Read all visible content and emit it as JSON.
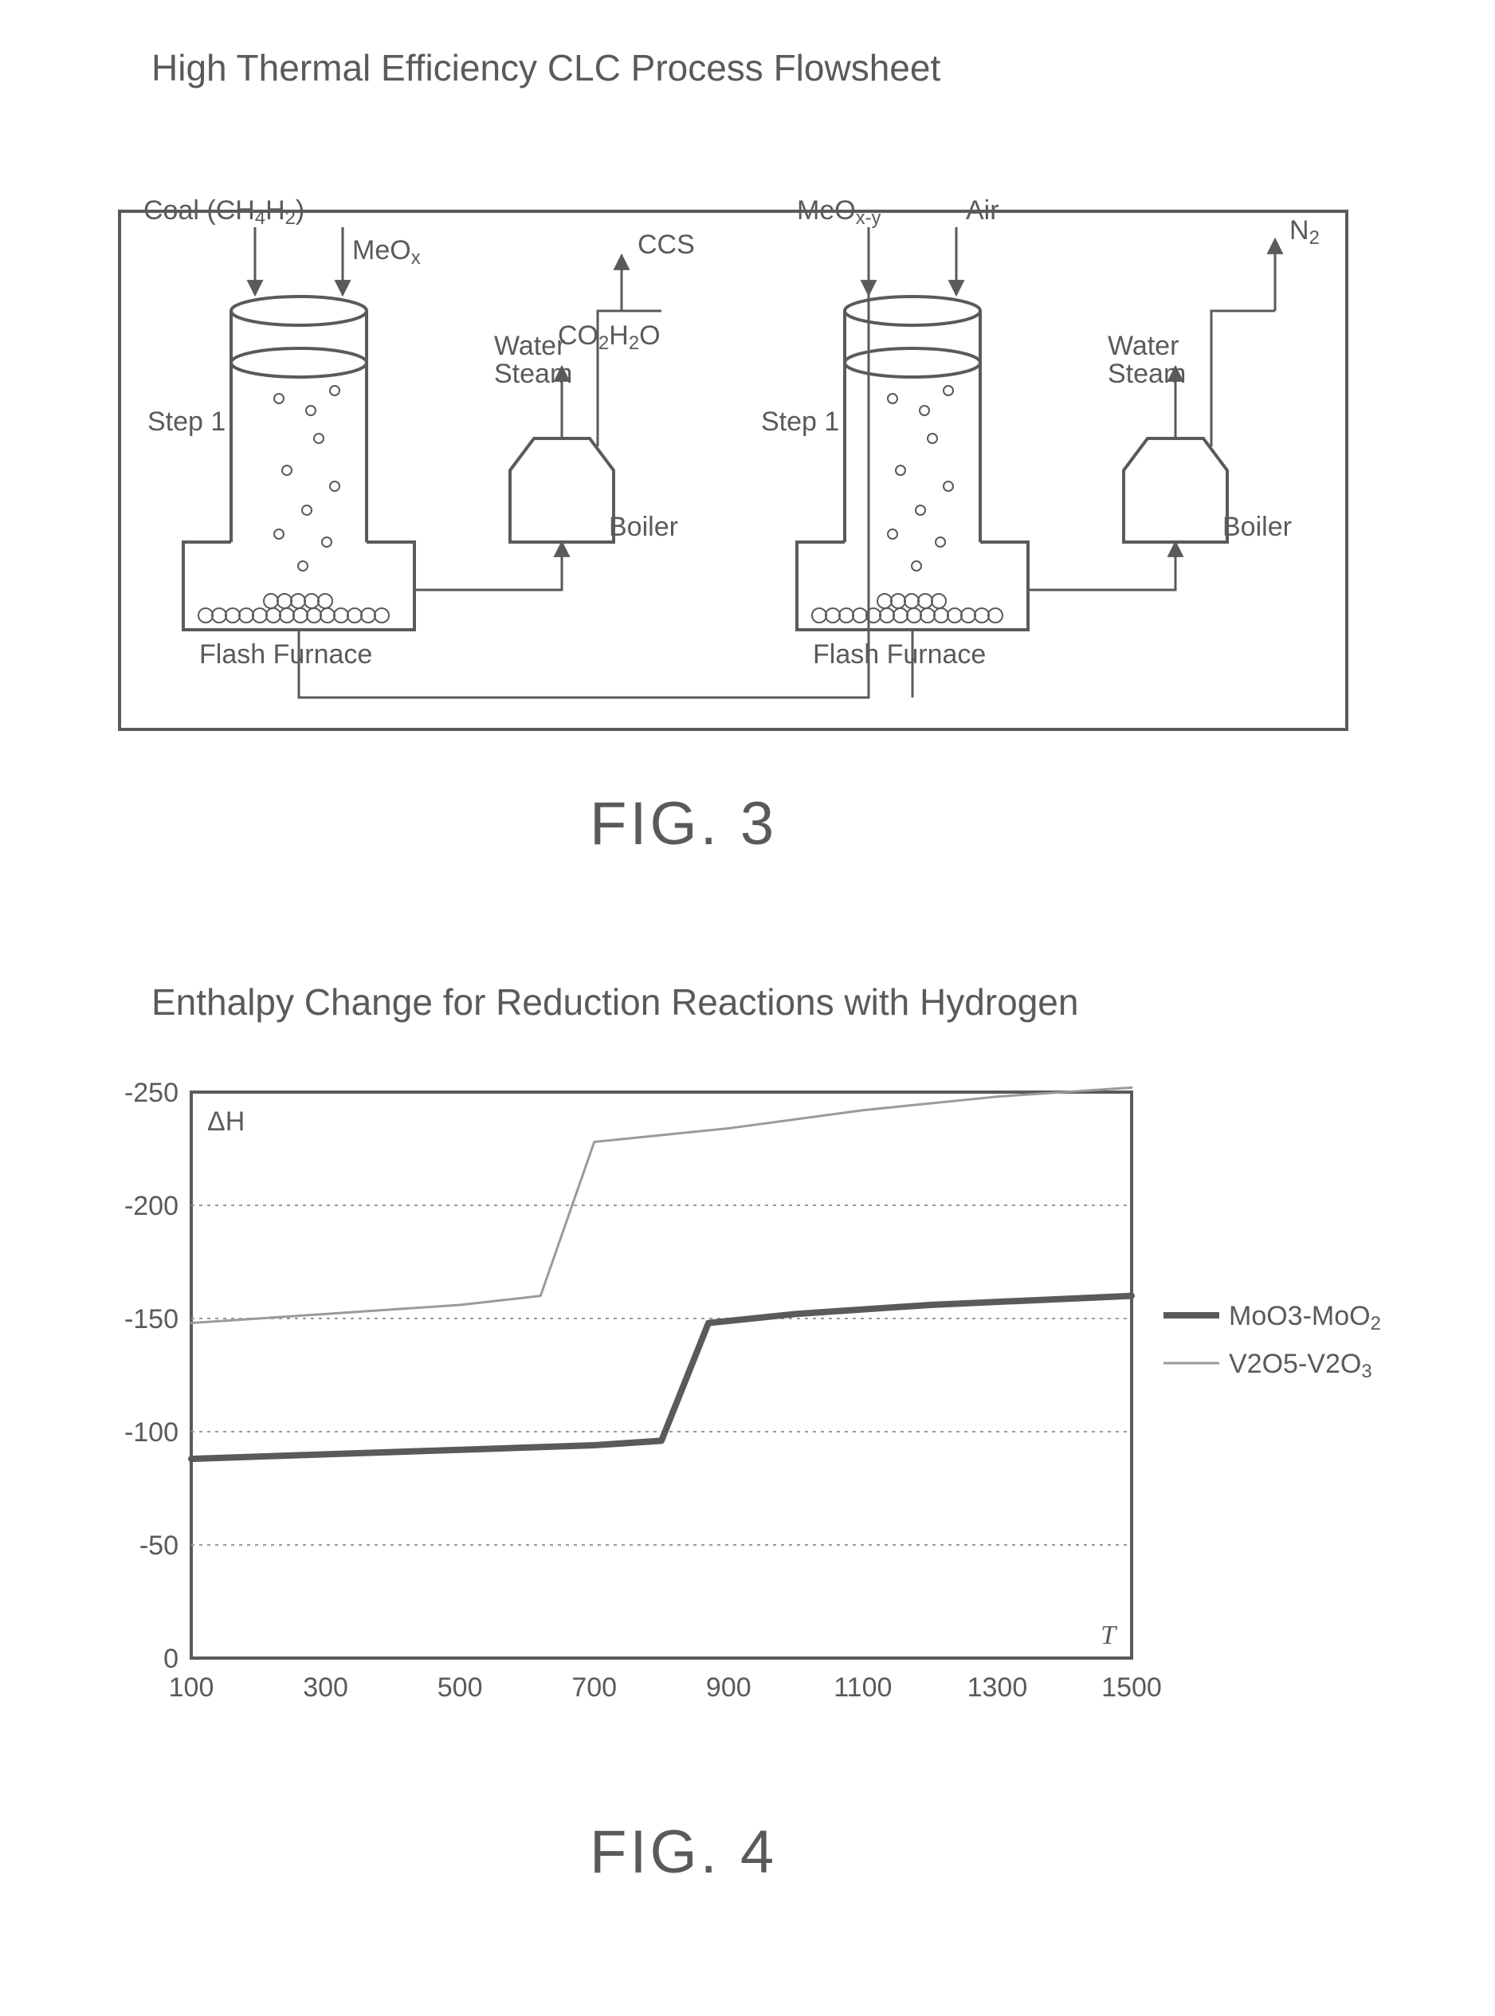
{
  "fig3": {
    "title": "High Thermal Efficiency CLC Process Flowsheet",
    "caption": "FIG. 3",
    "title_fontsize": 46,
    "title_color": "#5a5a5a",
    "caption_fontsize": 76,
    "caption_color": "#5a5a5a",
    "stroke_color": "#5a5a5a",
    "text_color": "#5a5a5a",
    "background": "#ffffff",
    "text_fontsize": 34,
    "labels": {
      "coal": "Coal (CH",
      "coal_sub": "4",
      "coal_h": "H",
      "coal_sub2": "2",
      "coal_close": ")",
      "meox": "MeO",
      "meox_sub": "x",
      "ccs": "CCS",
      "co2h2o": "CO",
      "co2h2o_sub1": "2",
      "co2h2o_h": "H",
      "co2h2o_sub2": "2",
      "co2h2o_o": "O",
      "water": "Water",
      "steam": "Steam",
      "step1": "Step 1",
      "boiler": "Boiler",
      "flash_furnace": "Flash Furnace",
      "meoxy": "MeO",
      "meoxy_sub": "x-y",
      "air": "Air",
      "n2": "N",
      "n2_sub": "2"
    }
  },
  "fig4": {
    "title": "Enthalpy Change for Reduction Reactions with Hydrogen",
    "caption": "FIG. 4",
    "title_fontsize": 46,
    "title_color": "#5a5a5a",
    "caption_fontsize": 76,
    "caption_color": "#5a5a5a",
    "type": "line",
    "background": "#ffffff",
    "axis_color": "#5a5a5a",
    "grid_color": "#9a9a9a",
    "text_color": "#5a5a5a",
    "ylabel": "ΔH",
    "xlabel": "T",
    "label_fontsize": 34,
    "tick_fontsize": 34,
    "xlim": [
      100,
      1500
    ],
    "ylim_top": -250,
    "ylim_bottom": 0,
    "xtick_step": 200,
    "ytick_step": -50,
    "xticks": [
      100,
      300,
      500,
      700,
      900,
      1100,
      1300,
      1500
    ],
    "yticks": [
      -250,
      -200,
      -150,
      -100,
      -50,
      0
    ],
    "series": [
      {
        "name": "MoO3-MoO2",
        "label": "MoO3-MoO",
        "label_sub": "2",
        "color": "#5a5a5a",
        "stroke_width": 8,
        "data": [
          [
            100,
            -88
          ],
          [
            300,
            -90
          ],
          [
            500,
            -92
          ],
          [
            700,
            -94
          ],
          [
            800,
            -96
          ],
          [
            870,
            -148
          ],
          [
            1000,
            -152
          ],
          [
            1200,
            -156
          ],
          [
            1500,
            -160
          ]
        ]
      },
      {
        "name": "V2O5-V2O3",
        "label": "V2O5-V2O",
        "label_sub": "3",
        "color": "#9a9a9a",
        "stroke_width": 3,
        "data": [
          [
            100,
            -148
          ],
          [
            300,
            -152
          ],
          [
            500,
            -156
          ],
          [
            620,
            -160
          ],
          [
            700,
            -228
          ],
          [
            900,
            -234
          ],
          [
            1100,
            -242
          ],
          [
            1300,
            -248
          ],
          [
            1500,
            -252
          ]
        ]
      }
    ],
    "plot_border_width": 4,
    "grid_dash": "4 6"
  }
}
